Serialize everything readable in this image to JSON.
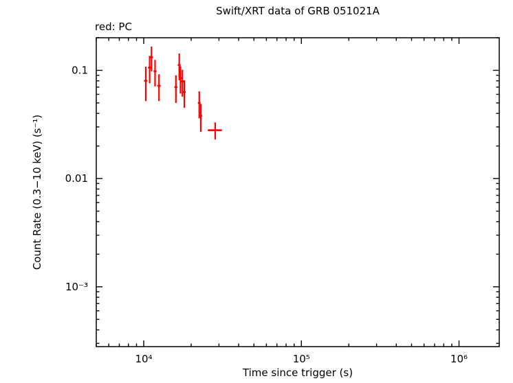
{
  "chart_data": {
    "type": "scatter",
    "title": "Swift/XRT data of GRB 051021A",
    "legend_label": "red: PC",
    "xlabel": "Time since trigger (s)",
    "ylabel": "Count Rate (0.3−10 keV) (s⁻¹)",
    "xscale": "log",
    "yscale": "log",
    "xlim": [
      5000,
      1800000
    ],
    "ylim": [
      0.00028,
      0.2
    ],
    "grid": false,
    "legend_position": "top-left",
    "x_major_ticks": [
      10000,
      100000,
      1000000
    ],
    "x_tick_labels": [
      "10⁴",
      "10⁵",
      "10⁶"
    ],
    "y_major_ticks": [
      0.001,
      0.01,
      0.1
    ],
    "y_tick_labels": [
      "10⁻³",
      "0.01",
      "0.1"
    ],
    "series": [
      {
        "name": "PC",
        "color": "#ff0000",
        "marker": "plus-with-error-bars",
        "points": [
          {
            "t": 10300,
            "t_err": 250,
            "rate": 0.08,
            "rate_err": 0.028
          },
          {
            "t": 10900,
            "t_err": 250,
            "rate": 0.106,
            "rate_err": 0.03
          },
          {
            "t": 11200,
            "t_err": 250,
            "rate": 0.132,
            "rate_err": 0.034
          },
          {
            "t": 11800,
            "t_err": 250,
            "rate": 0.098,
            "rate_err": 0.027
          },
          {
            "t": 12500,
            "t_err": 300,
            "rate": 0.072,
            "rate_err": 0.02
          },
          {
            "t": 16000,
            "t_err": 350,
            "rate": 0.07,
            "rate_err": 0.02
          },
          {
            "t": 16800,
            "t_err": 350,
            "rate": 0.112,
            "rate_err": 0.031
          },
          {
            "t": 17100,
            "t_err": 350,
            "rate": 0.085,
            "rate_err": 0.024
          },
          {
            "t": 17600,
            "t_err": 350,
            "rate": 0.079,
            "rate_err": 0.022
          },
          {
            "t": 18100,
            "t_err": 350,
            "rate": 0.063,
            "rate_err": 0.018
          },
          {
            "t": 22500,
            "t_err": 450,
            "rate": 0.05,
            "rate_err": 0.014
          },
          {
            "t": 23000,
            "t_err": 450,
            "rate": 0.038,
            "rate_err": 0.011
          },
          {
            "t": 28400,
            "t_err": 2900,
            "rate": 0.028,
            "rate_err": 0.005
          }
        ]
      }
    ]
  }
}
